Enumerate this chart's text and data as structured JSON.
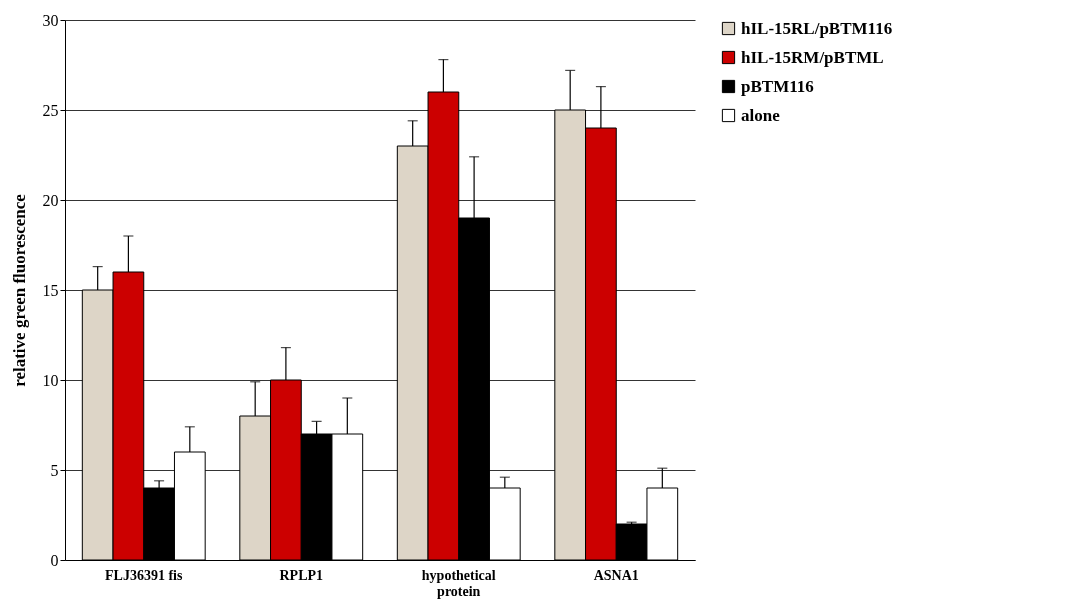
{
  "chart_data": {
    "type": "bar",
    "ylabel": "relative green fluorescence",
    "categories": [
      "FLJ36391 fis",
      "RPLP1",
      "hypothetical protein",
      "ASNA1"
    ],
    "series": [
      {
        "name": "hIL-15RL/pBTM116",
        "color": "#ddd5c7",
        "values": [
          15,
          8,
          23,
          25
        ],
        "errors": [
          1.3,
          1.9,
          1.4,
          2.2
        ]
      },
      {
        "name": "hIL-15RM/pBTML",
        "color": "#cc0000",
        "values": [
          16,
          10,
          26,
          24
        ],
        "errors": [
          2,
          1.8,
          1.8,
          2.3
        ]
      },
      {
        "name": "pBTM116",
        "color": "#000000",
        "values": [
          4,
          7,
          19,
          2
        ],
        "errors": [
          0.4,
          0.7,
          3.4,
          0.1
        ]
      },
      {
        "name": "alone",
        "color": "#ffffff",
        "values": [
          6,
          7,
          4,
          4
        ],
        "errors": [
          1.4,
          2,
          0.6,
          1.1
        ]
      }
    ],
    "ylim": [
      0,
      30
    ],
    "yticks": [
      0,
      5,
      10,
      15,
      20,
      25,
      30
    ],
    "grid": "y",
    "legend": "right"
  }
}
